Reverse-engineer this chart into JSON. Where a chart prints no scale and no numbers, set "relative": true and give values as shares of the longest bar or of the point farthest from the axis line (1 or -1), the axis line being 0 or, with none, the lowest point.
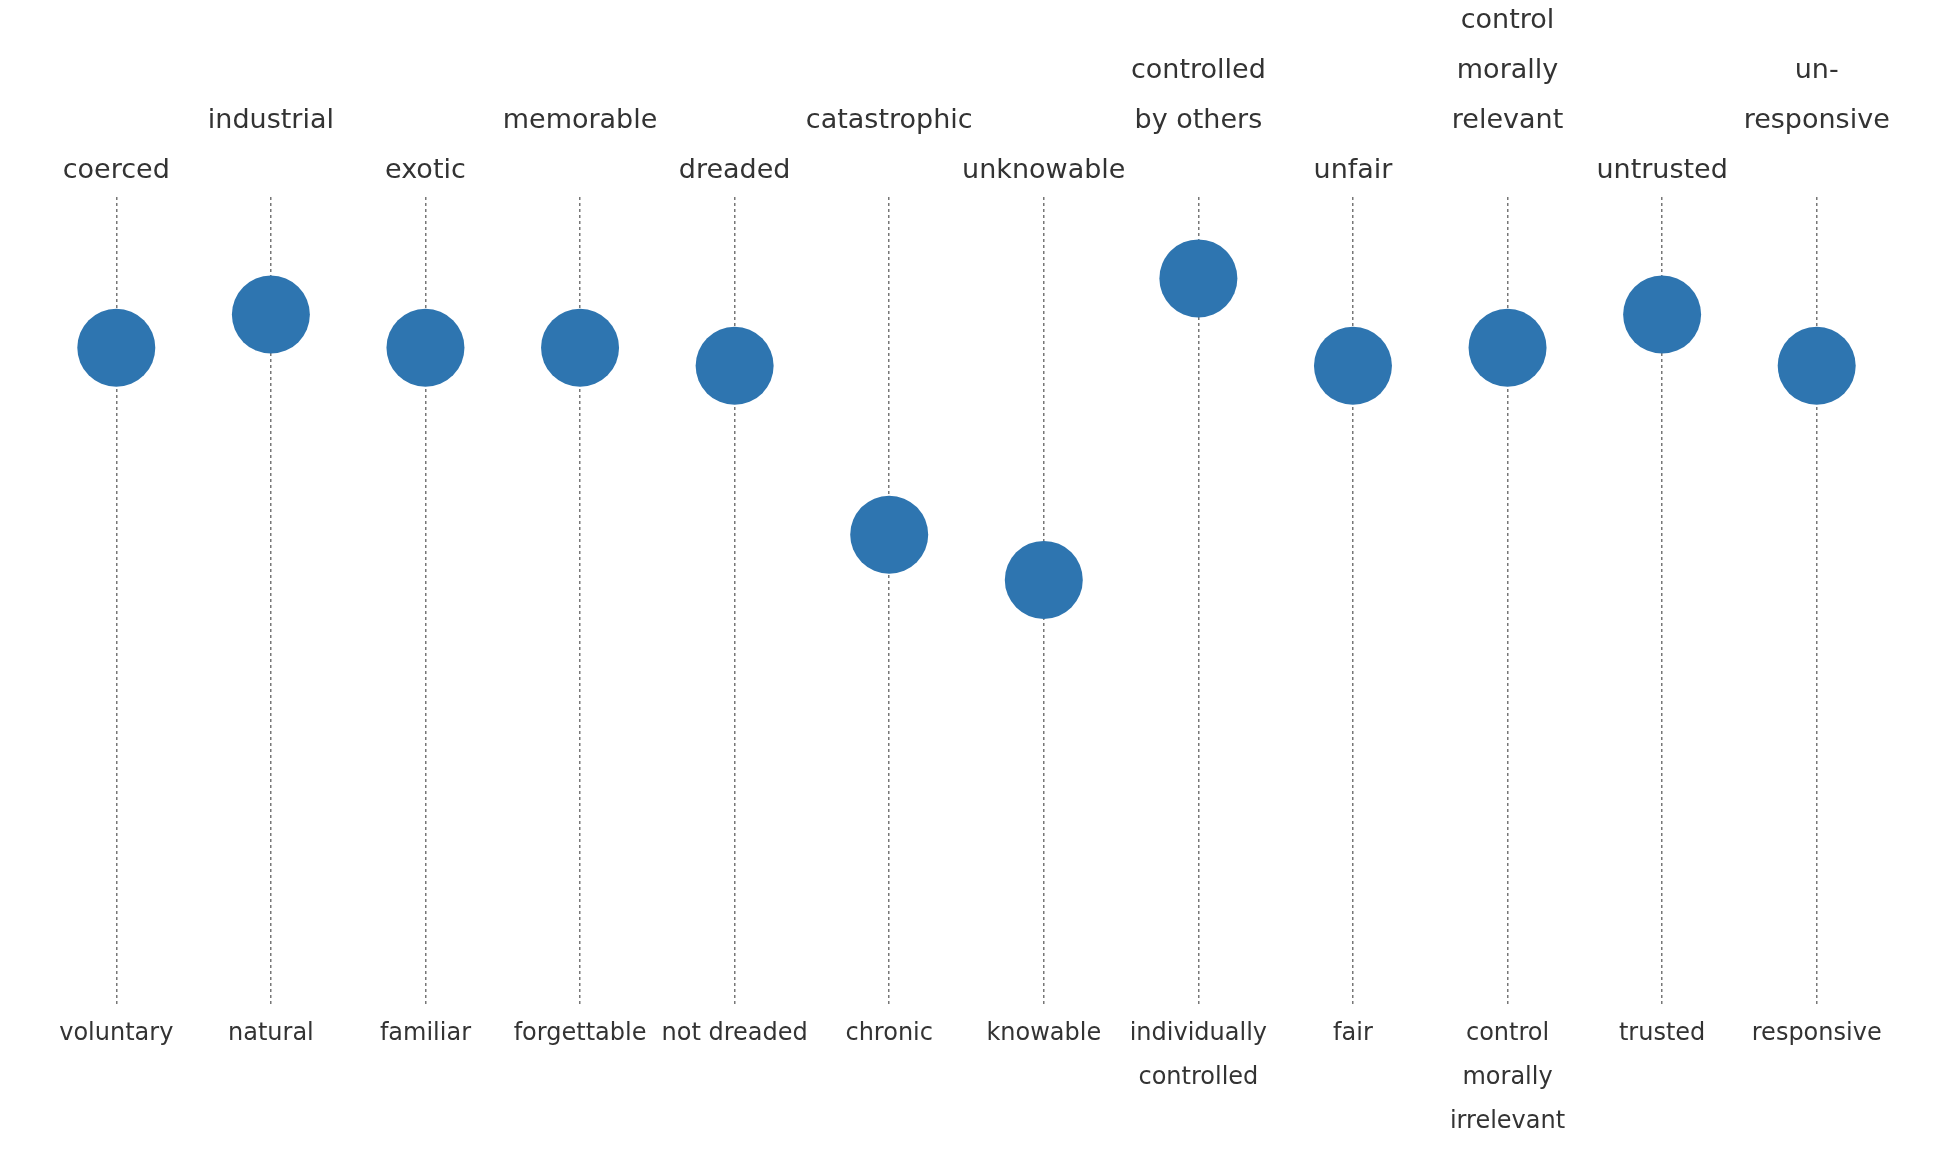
{
  "chart_data": {
    "type": "scatter",
    "relative": true,
    "grid": "x",
    "marker": "circle",
    "tick_labels": "x",
    "categories": [
      "voluntary",
      "natural",
      "familiar",
      "forgettable",
      "not dreaded",
      "chronic",
      "knowable",
      "individually\ncontrolled",
      "fair",
      "control\nmorally\nirrelevant",
      "trusted",
      "responsive"
    ],
    "annotations": [
      "coerced",
      "industrial",
      "exotic",
      "memorable",
      "dreaded",
      "catastrophic",
      "unknowable",
      "controlled\nby others",
      "unfair",
      "control\nmorally\nrelevant",
      "untrusted",
      "un-\nresponsive"
    ],
    "series": [
      {
        "color": "#2e75b0",
        "values": [
          0.77,
          0.88,
          0.77,
          0.77,
          0.71,
          0.15,
          0,
          1,
          0.71,
          0.77,
          0.88,
          0.71
        ]
      }
    ]
  }
}
